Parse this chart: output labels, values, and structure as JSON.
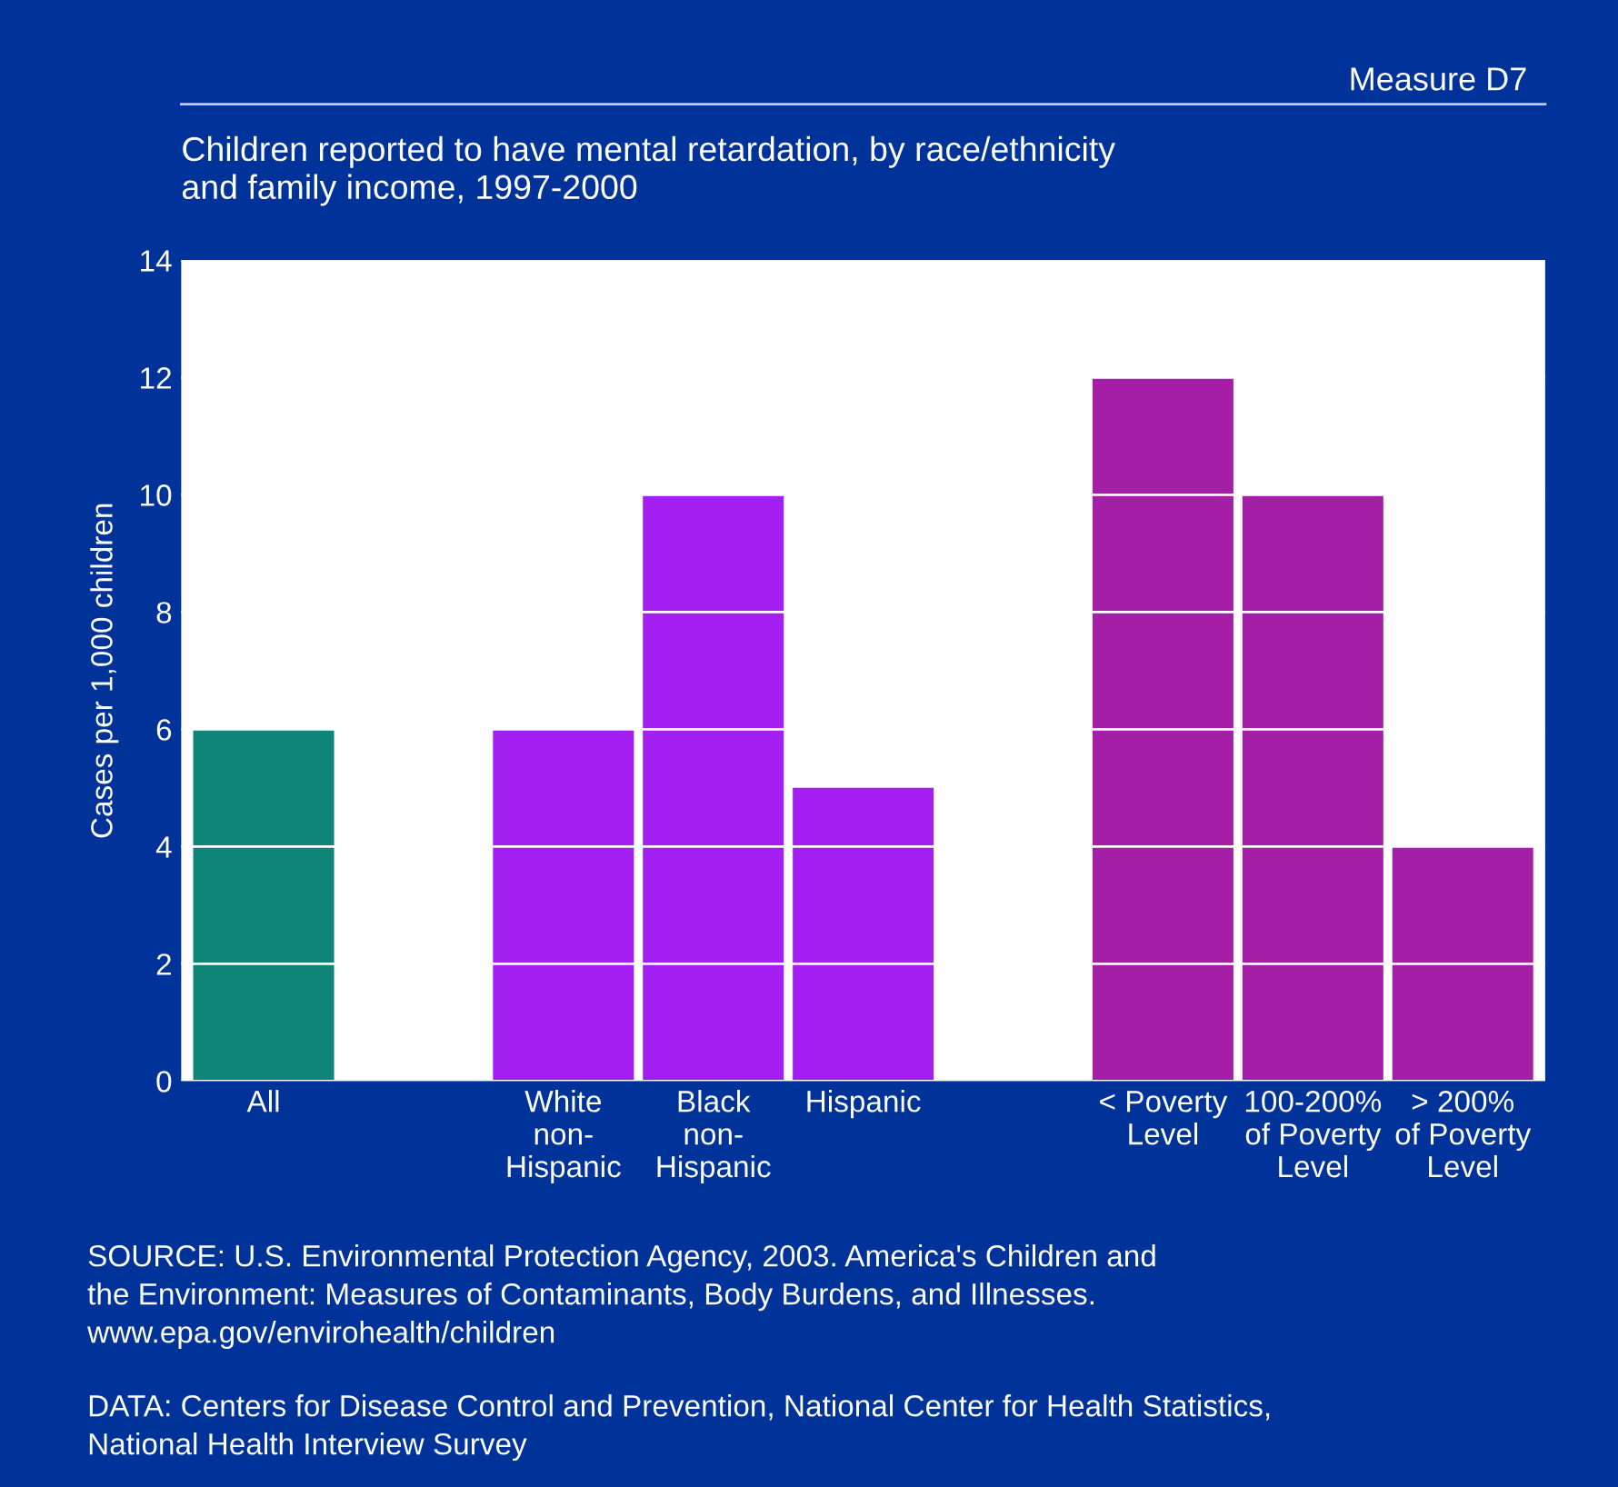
{
  "chart_data": {
    "type": "bar",
    "title": "Measure D7",
    "subtitle": "Children reported to have mental retardation, by race/ethnicity\nand family income, 1997-2000",
    "ylabel": "Cases per 1,000 children",
    "categories": [
      "All",
      null,
      "White\nnon-\nHispanic",
      "Black\nnon-\nHispanic",
      "Hispanic",
      null,
      "< Poverty\nLevel",
      "100-200%\nof Poverty\nLevel",
      "> 200%\nof Poverty\nLevel"
    ],
    "values": [
      6,
      null,
      6,
      10,
      5,
      null,
      12,
      10,
      4
    ],
    "colors": [
      "#0f8478",
      null,
      "#a31ef0",
      "#a31ef0",
      "#a31ef0",
      null,
      "#a51ea6",
      "#a51ea6",
      "#a51ea6"
    ],
    "ylim": [
      0,
      14
    ],
    "yticks": [
      0,
      2,
      4,
      6,
      8,
      10,
      12,
      14
    ],
    "grid": "y",
    "annotations": [
      "SOURCE: U.S. Environmental Protection Agency, 2003. America's Children and\nthe Environment: Measures of Contaminants, Body Burdens, and Illnesses.\nwww.epa.gov/envirohealth/children",
      "DATA: Centers for Disease Control and Prevention, National Center for Health Statistics,\nNational Health Interview Survey"
    ]
  }
}
